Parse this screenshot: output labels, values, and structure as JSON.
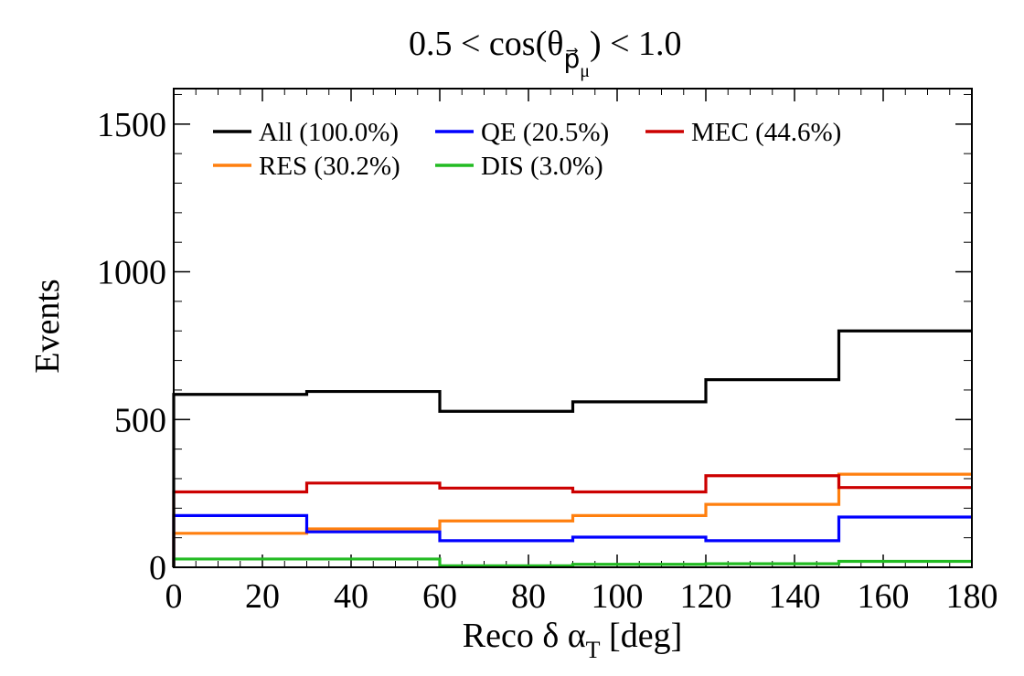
{
  "chart_data": {
    "type": "line",
    "title": "0.5 < cos(θ",
    "title_subscript": "p⃗",
    "title_sub_sub": "μ",
    "title_tail": ") < 1.0",
    "xlabel": "Reco δ α",
    "xlabel_subscript": "T",
    "xlabel_tail": " [deg]",
    "ylabel": "Events",
    "xlim": [
      0,
      180
    ],
    "ylim": [
      0,
      1620
    ],
    "x_ticks": [
      0,
      20,
      40,
      60,
      80,
      100,
      120,
      140,
      160,
      180
    ],
    "y_ticks": [
      0,
      500,
      1000,
      1500
    ],
    "x_tick_labels": [
      "0",
      "20",
      "40",
      "60",
      "80",
      "100",
      "120",
      "140",
      "160",
      "180"
    ],
    "y_tick_labels": [
      "0",
      "500",
      "1000",
      "1500"
    ],
    "bin_edges": [
      0,
      30,
      60,
      90,
      120,
      150,
      180
    ],
    "series": [
      {
        "name": "All (100.0%)",
        "color": "#000000",
        "values": [
          585,
          595,
          528,
          560,
          635,
          800
        ]
      },
      {
        "name": "QE (20.5%)",
        "color": "#0000ff",
        "values": [
          175,
          120,
          90,
          102,
          90,
          170
        ]
      },
      {
        "name": "MEC (44.6%)",
        "color": "#cc0000",
        "values": [
          255,
          285,
          268,
          255,
          310,
          270
        ]
      },
      {
        "name": "RES (30.2%)",
        "color": "#ff7f0e",
        "values": [
          115,
          130,
          157,
          175,
          213,
          315
        ]
      },
      {
        "name": "DIS (3.0%)",
        "color": "#22bb22",
        "values": [
          28,
          28,
          5,
          10,
          12,
          20
        ]
      }
    ],
    "legend_position": "top-left",
    "grid": false
  }
}
